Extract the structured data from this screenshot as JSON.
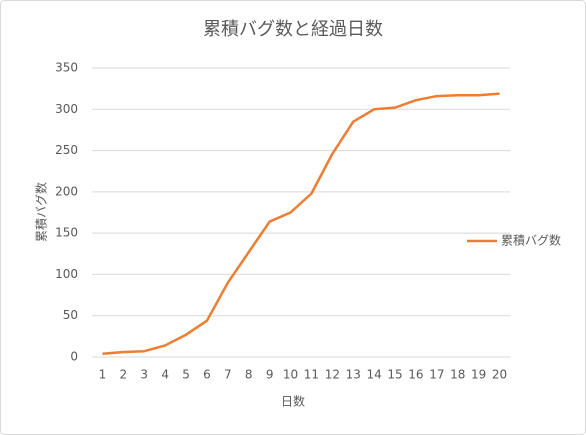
{
  "chart_data": {
    "type": "line",
    "title": "累積バグ数と経過日数",
    "x_label": "日数",
    "y_label": "累積バグ数",
    "categories": [
      "1",
      "2",
      "3",
      "4",
      "5",
      "6",
      "7",
      "8",
      "9",
      "10",
      "11",
      "12",
      "13",
      "14",
      "15",
      "16",
      "17",
      "18",
      "19",
      "20"
    ],
    "series": [
      {
        "name": "累積バグ数",
        "color": "#ed7d31",
        "values": [
          4,
          6,
          7,
          14,
          27,
          44,
          90,
          127,
          164,
          175,
          198,
          246,
          285,
          300,
          302,
          311,
          316,
          317,
          317,
          319
        ]
      }
    ],
    "ylim": [
      0,
      350
    ],
    "yticks": [
      0,
      50,
      100,
      150,
      200,
      250,
      300,
      350
    ],
    "grid": true,
    "legend": "right"
  }
}
